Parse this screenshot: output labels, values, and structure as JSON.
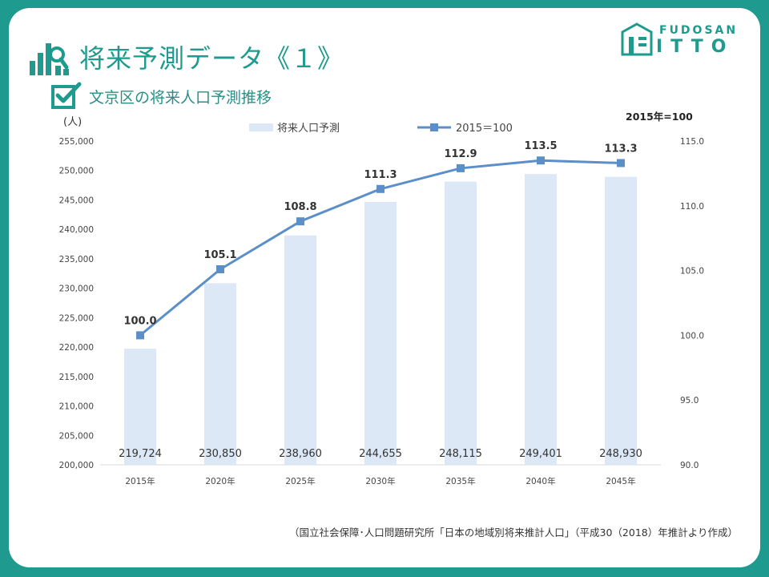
{
  "page_title": "将来予測データ《１》",
  "subtitle": "文京区の将来人口予測推移",
  "logo": {
    "line1": "FUDOSAN",
    "line2": "ITTO"
  },
  "source_note": "（国立社会保障･人口問題研究所「日本の地域別将来推計人口」（平成30（2018）年推計より作成）",
  "colors": {
    "frame": "#1e9a8e",
    "bar": "#dce8f6",
    "line": "#5b8fc9"
  },
  "icons": [
    "bar-chart-search-icon",
    "checkbox-icon",
    "logo-house-icon"
  ],
  "chart_data": {
    "type": "bar+line",
    "categories": [
      "2015年",
      "2020年",
      "2025年",
      "2030年",
      "2035年",
      "2040年",
      "2045年"
    ],
    "left_axis_unit": "(人)",
    "right_axis_unit": "2015年=100",
    "legend": {
      "placement": "top-center"
    },
    "ylim_left": [
      200000,
      255000
    ],
    "yticks_left": [
      "200,000",
      "205,000",
      "210,000",
      "215,000",
      "220,000",
      "225,000",
      "230,000",
      "235,000",
      "240,000",
      "245,000",
      "250,000",
      "255,000"
    ],
    "ylim_right": [
      90,
      115
    ],
    "yticks_right": [
      "90.0",
      "95.0",
      "100.0",
      "105.0",
      "110.0",
      "115.0"
    ],
    "series": [
      {
        "name": "将来人口予測",
        "kind": "bar",
        "axis": "left",
        "values": [
          219724,
          230850,
          238960,
          244655,
          248115,
          249401,
          248930
        ],
        "labels": [
          "219,724",
          "230,850",
          "238,960",
          "244,655",
          "248,115",
          "249,401",
          "248,930"
        ]
      },
      {
        "name": "2015＝100",
        "kind": "line",
        "axis": "right",
        "values": [
          100.0,
          105.1,
          108.8,
          111.3,
          112.9,
          113.5,
          113.3
        ],
        "labels": [
          "100.0",
          "105.1",
          "108.8",
          "111.3",
          "112.9",
          "113.5",
          "113.3"
        ]
      }
    ]
  }
}
